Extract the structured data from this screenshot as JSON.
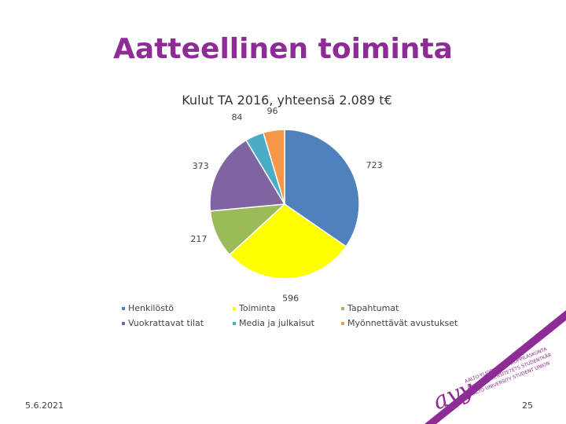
{
  "slide": {
    "title": "Aatteellinen toiminta",
    "date": "5.6.2021",
    "page_number": "25"
  },
  "logo": {
    "mark": "ayy",
    "text_lines": [
      "AALTO-YLIOPISTON YLIOPPILASKUNTA",
      "AALTO-UNIVERSITETETS STUDENTKÅR",
      "AALTO UNIVERSITY STUDENT UNION"
    ],
    "color": "#8e2c95"
  },
  "chart_data": {
    "type": "pie",
    "title": "Kulut TA 2016, yhteensä 2.089 t€",
    "categories": [
      "Henkilöstö",
      "Toiminta",
      "Tapahtumat",
      "Vuokrattavat tilat",
      "Media ja julkaisut",
      "Myönnettävät avustukset"
    ],
    "values": [
      723,
      596,
      217,
      373,
      84,
      96
    ],
    "colors": [
      "#4f81bd",
      "#ffff00",
      "#9bbb59",
      "#8064a2",
      "#4bacc6",
      "#f79646"
    ],
    "legend": "bottom"
  }
}
